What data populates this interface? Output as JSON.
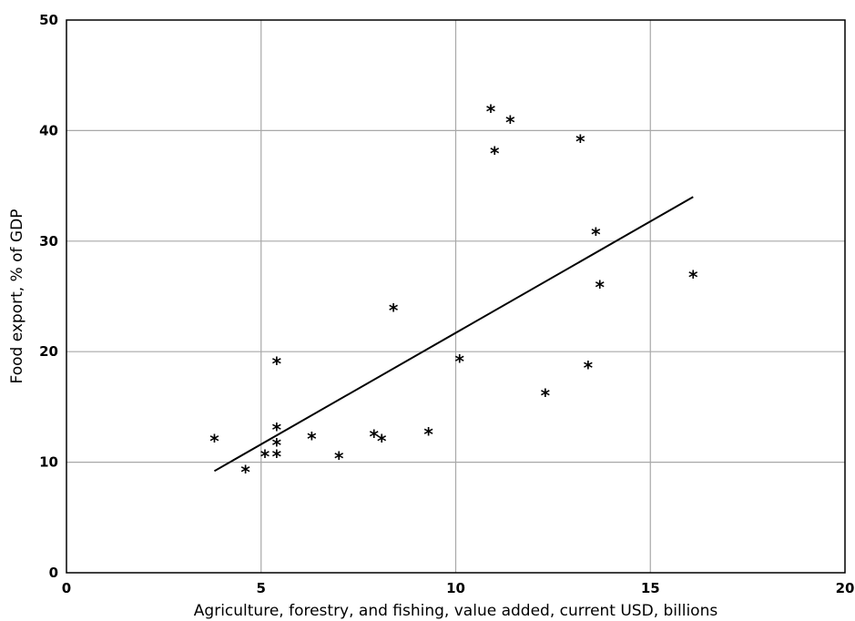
{
  "chart_data": {
    "type": "scatter",
    "title": "",
    "xlabel": "Agriculture, forestry, and fishing, value added, current USD, billions",
    "ylabel": "Food export, % of GDP",
    "xlim": [
      0,
      20
    ],
    "ylim": [
      0,
      50
    ],
    "x_ticks": [
      0,
      5,
      10,
      15,
      20
    ],
    "y_ticks": [
      0,
      10,
      20,
      30,
      40,
      50
    ],
    "grid": true,
    "marker": "*",
    "points": [
      {
        "x": 3.8,
        "y": 12.0
      },
      {
        "x": 4.6,
        "y": 9.2
      },
      {
        "x": 5.1,
        "y": 10.6
      },
      {
        "x": 5.4,
        "y": 19.0
      },
      {
        "x": 5.4,
        "y": 13.0
      },
      {
        "x": 5.4,
        "y": 11.6
      },
      {
        "x": 5.4,
        "y": 10.6
      },
      {
        "x": 6.3,
        "y": 12.2
      },
      {
        "x": 7.0,
        "y": 10.4
      },
      {
        "x": 7.9,
        "y": 12.4
      },
      {
        "x": 8.1,
        "y": 12.0
      },
      {
        "x": 8.4,
        "y": 23.8
      },
      {
        "x": 9.3,
        "y": 12.6
      },
      {
        "x": 10.1,
        "y": 19.2
      },
      {
        "x": 10.9,
        "y": 41.8
      },
      {
        "x": 11.0,
        "y": 38.0
      },
      {
        "x": 11.4,
        "y": 40.8
      },
      {
        "x": 12.3,
        "y": 16.1
      },
      {
        "x": 13.2,
        "y": 39.1
      },
      {
        "x": 13.4,
        "y": 18.6
      },
      {
        "x": 13.6,
        "y": 30.7
      },
      {
        "x": 13.7,
        "y": 25.9
      },
      {
        "x": 16.1,
        "y": 26.8
      }
    ],
    "trendline": {
      "x": [
        3.8,
        16.1
      ],
      "y": [
        9.2,
        34.0
      ]
    }
  }
}
